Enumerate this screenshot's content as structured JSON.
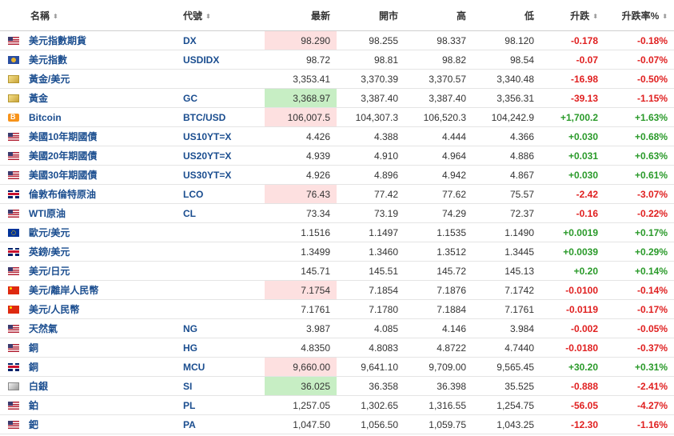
{
  "headers": {
    "name": "名稱",
    "code": "代號",
    "last": "最新",
    "open": "開市",
    "high": "高",
    "low": "低",
    "change": "升跌",
    "change_pct": "升跌率%",
    "sort_icon": "sort-arrows-icon"
  },
  "colors": {
    "up": "#2a9a2a",
    "down": "#e02020",
    "highlight_down": "#fde0e0",
    "highlight_up": "#c7eec4",
    "link": "#1a4d8f"
  },
  "rows": [
    {
      "flag": "us",
      "name": "美元指數期貨",
      "code": "DX",
      "last": "98.290",
      "open": "98.255",
      "high": "98.337",
      "low": "98.120",
      "change": "-0.178",
      "pct": "-0.18%",
      "dir": "down",
      "hl": "red"
    },
    {
      "flag": "asean",
      "name": "美元指數",
      "code": "USDIDX",
      "last": "98.72",
      "open": "98.81",
      "high": "98.82",
      "low": "98.54",
      "change": "-0.07",
      "pct": "-0.07%",
      "dir": "down",
      "hl": ""
    },
    {
      "flag": "gold",
      "name": "黃金/美元",
      "code": "",
      "last": "3,353.41",
      "open": "3,370.39",
      "high": "3,370.57",
      "low": "3,340.48",
      "change": "-16.98",
      "pct": "-0.50%",
      "dir": "down",
      "hl": ""
    },
    {
      "flag": "gold",
      "name": "黃金",
      "code": "GC",
      "last": "3,368.97",
      "open": "3,387.40",
      "high": "3,387.40",
      "low": "3,356.31",
      "change": "-39.13",
      "pct": "-1.15%",
      "dir": "down",
      "hl": "green"
    },
    {
      "flag": "btc",
      "name": "Bitcoin",
      "code": "BTC/USD",
      "last": "106,007.5",
      "open": "104,307.3",
      "high": "106,520.3",
      "low": "104,242.9",
      "change": "+1,700.2",
      "pct": "+1.63%",
      "dir": "up",
      "hl": "red"
    },
    {
      "flag": "us",
      "name": "美國10年期國債",
      "code": "US10YT=X",
      "last": "4.426",
      "open": "4.388",
      "high": "4.444",
      "low": "4.366",
      "change": "+0.030",
      "pct": "+0.68%",
      "dir": "up",
      "hl": ""
    },
    {
      "flag": "us",
      "name": "美國20年期國債",
      "code": "US20YT=X",
      "last": "4.939",
      "open": "4.910",
      "high": "4.964",
      "low": "4.886",
      "change": "+0.031",
      "pct": "+0.63%",
      "dir": "up",
      "hl": ""
    },
    {
      "flag": "us",
      "name": "美國30年期國債",
      "code": "US30YT=X",
      "last": "4.926",
      "open": "4.896",
      "high": "4.942",
      "low": "4.867",
      "change": "+0.030",
      "pct": "+0.61%",
      "dir": "up",
      "hl": ""
    },
    {
      "flag": "gb",
      "name": "倫敦布倫特原油",
      "code": "LCO",
      "last": "76.43",
      "open": "77.42",
      "high": "77.62",
      "low": "75.57",
      "change": "-2.42",
      "pct": "-3.07%",
      "dir": "down",
      "hl": "red"
    },
    {
      "flag": "us",
      "name": "WTI原油",
      "code": "CL",
      "last": "73.34",
      "open": "73.19",
      "high": "74.29",
      "low": "72.37",
      "change": "-0.16",
      "pct": "-0.22%",
      "dir": "down",
      "hl": ""
    },
    {
      "flag": "eu",
      "name": "歐元/美元",
      "code": "",
      "last": "1.1516",
      "open": "1.1497",
      "high": "1.1535",
      "low": "1.1490",
      "change": "+0.0019",
      "pct": "+0.17%",
      "dir": "up",
      "hl": ""
    },
    {
      "flag": "gb",
      "name": "英鎊/美元",
      "code": "",
      "last": "1.3499",
      "open": "1.3460",
      "high": "1.3512",
      "low": "1.3445",
      "change": "+0.0039",
      "pct": "+0.29%",
      "dir": "up",
      "hl": ""
    },
    {
      "flag": "us",
      "name": "美元/日元",
      "code": "",
      "last": "145.71",
      "open": "145.51",
      "high": "145.72",
      "low": "145.13",
      "change": "+0.20",
      "pct": "+0.14%",
      "dir": "up",
      "hl": ""
    },
    {
      "flag": "cn",
      "name": "美元/離岸人民幣",
      "code": "",
      "last": "7.1754",
      "open": "7.1854",
      "high": "7.1876",
      "low": "7.1742",
      "change": "-0.0100",
      "pct": "-0.14%",
      "dir": "down",
      "hl": "red"
    },
    {
      "flag": "cn",
      "name": "美元/人民幣",
      "code": "",
      "last": "7.1761",
      "open": "7.1780",
      "high": "7.1884",
      "low": "7.1761",
      "change": "-0.0119",
      "pct": "-0.17%",
      "dir": "down",
      "hl": ""
    },
    {
      "flag": "us",
      "name": "天然氣",
      "code": "NG",
      "last": "3.987",
      "open": "4.085",
      "high": "4.146",
      "low": "3.984",
      "change": "-0.002",
      "pct": "-0.05%",
      "dir": "down",
      "hl": ""
    },
    {
      "flag": "us",
      "name": "銅",
      "code": "HG",
      "last": "4.8350",
      "open": "4.8083",
      "high": "4.8722",
      "low": "4.7440",
      "change": "-0.0180",
      "pct": "-0.37%",
      "dir": "down",
      "hl": ""
    },
    {
      "flag": "gb",
      "name": "銅",
      "code": "MCU",
      "last": "9,660.00",
      "open": "9,641.10",
      "high": "9,709.00",
      "low": "9,565.45",
      "change": "+30.20",
      "pct": "+0.31%",
      "dir": "up",
      "hl": "red"
    },
    {
      "flag": "silver",
      "name": "白銀",
      "code": "SI",
      "last": "36.025",
      "open": "36.358",
      "high": "36.398",
      "low": "35.525",
      "change": "-0.888",
      "pct": "-2.41%",
      "dir": "down",
      "hl": "green"
    },
    {
      "flag": "us",
      "name": "鉑",
      "code": "PL",
      "last": "1,257.05",
      "open": "1,302.65",
      "high": "1,316.55",
      "low": "1,254.75",
      "change": "-56.05",
      "pct": "-4.27%",
      "dir": "down",
      "hl": ""
    },
    {
      "flag": "us",
      "name": "鈀",
      "code": "PA",
      "last": "1,047.50",
      "open": "1,056.50",
      "high": "1,059.75",
      "low": "1,043.25",
      "change": "-12.30",
      "pct": "-1.16%",
      "dir": "down",
      "hl": ""
    }
  ]
}
